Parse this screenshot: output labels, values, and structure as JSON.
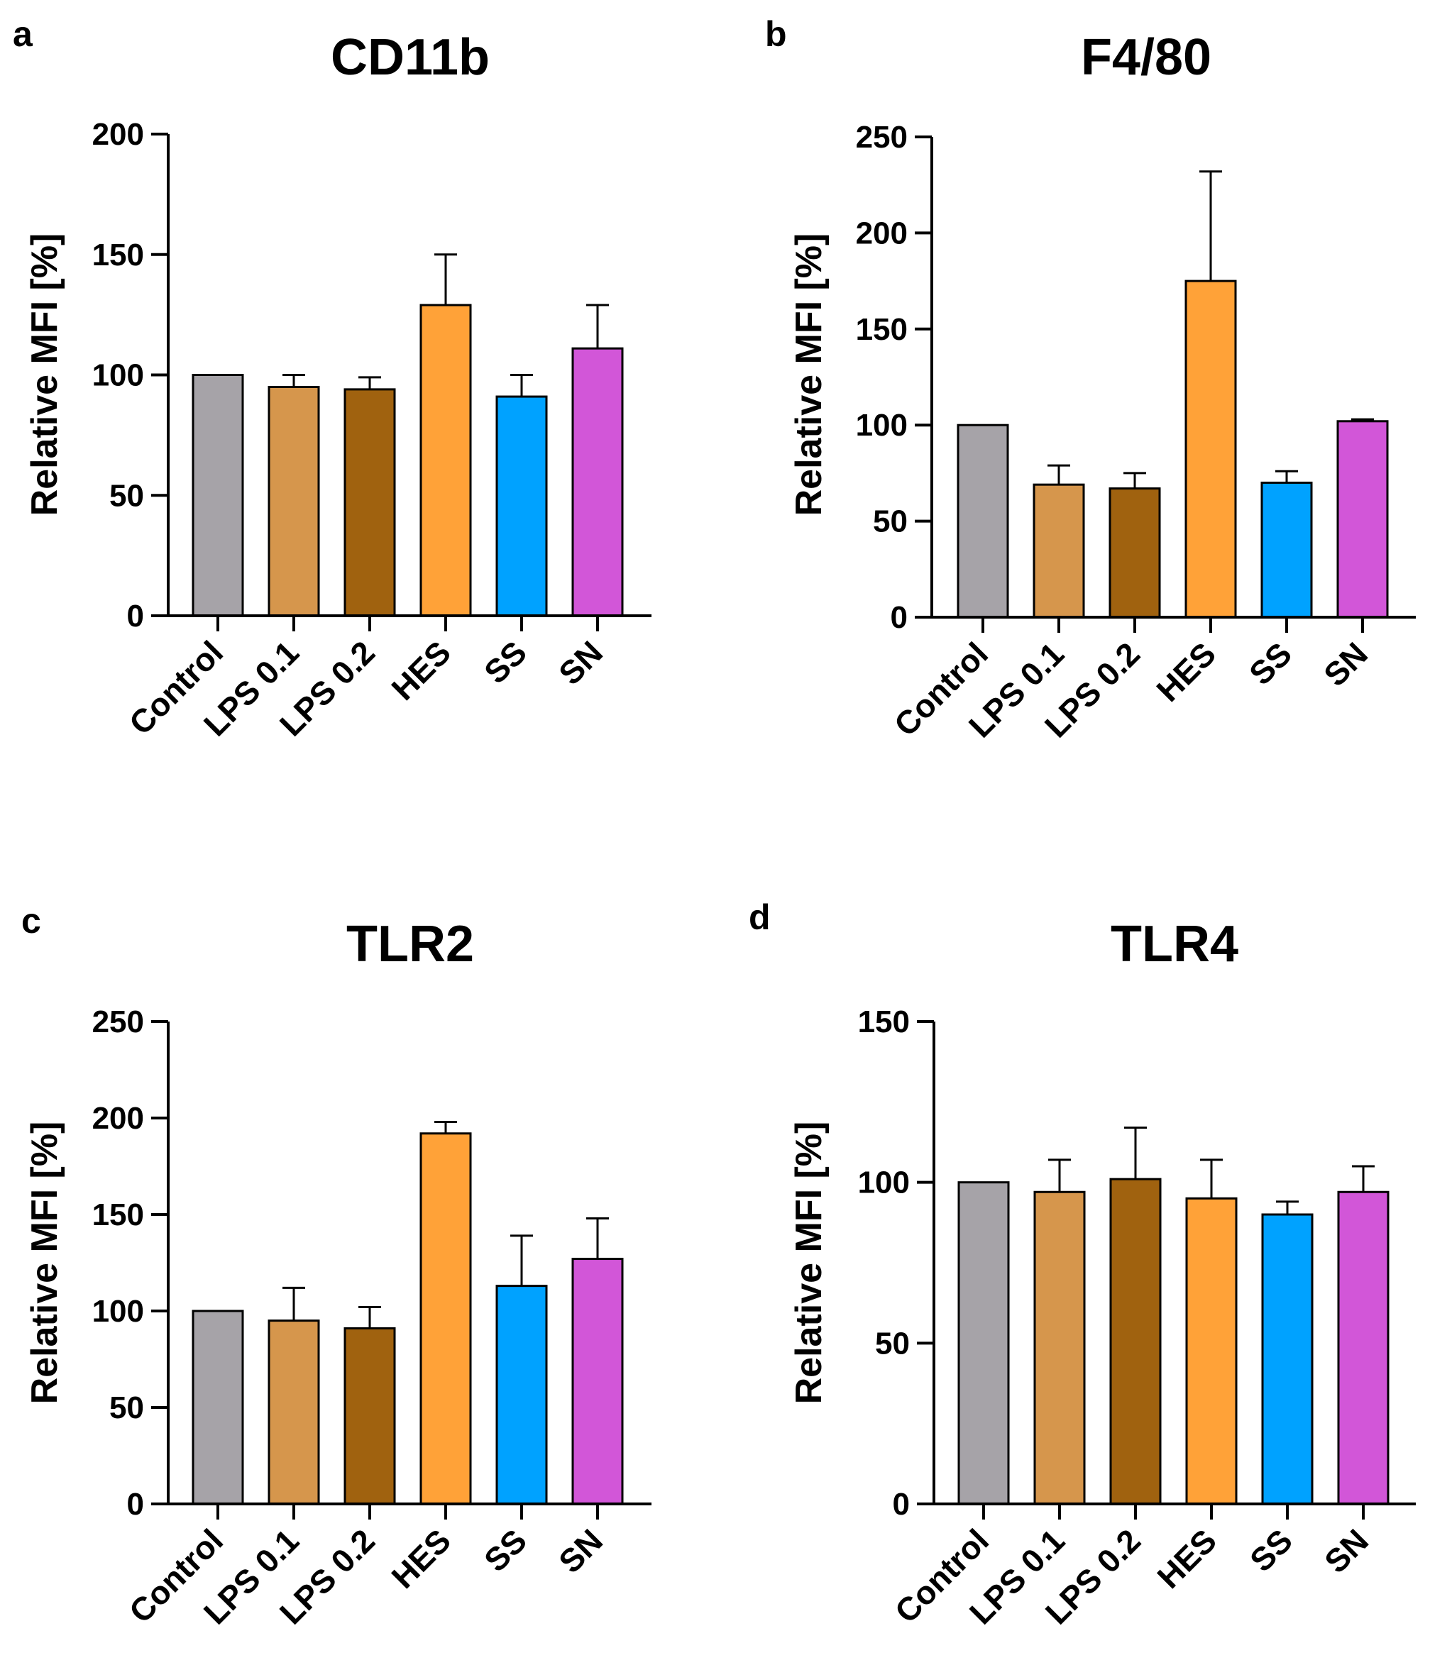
{
  "colors": {
    "Control": "#a6a3a8",
    "LPS 0.1": "#d6964c",
    "LPS 0.2": "#a0620f",
    "HES": "#ffa238",
    "SS": "#00a2ff",
    "SN": "#d256d8"
  },
  "chart_data": [
    {
      "panel": "a",
      "type": "bar",
      "title": "CD11b",
      "ylabel": "Relative MFI [%]",
      "xlabel": "",
      "ylim": [
        0,
        200
      ],
      "yticks": [
        0,
        50,
        100,
        150,
        200
      ],
      "categories": [
        "Control",
        "LPS 0.1",
        "LPS 0.2",
        "HES",
        "SS",
        "SN"
      ],
      "values": [
        100,
        95,
        94,
        129,
        91,
        111
      ],
      "errors": [
        0,
        5,
        5,
        21,
        9,
        18
      ]
    },
    {
      "panel": "b",
      "type": "bar",
      "title": "F4/80",
      "ylabel": "Relative MFI [%]",
      "xlabel": "",
      "ylim": [
        0,
        250
      ],
      "yticks": [
        0,
        50,
        100,
        150,
        200,
        250
      ],
      "categories": [
        "Control",
        "LPS 0.1",
        "LPS 0.2",
        "HES",
        "SS",
        "SN"
      ],
      "values": [
        100,
        69,
        67,
        175,
        70,
        102
      ],
      "errors": [
        0,
        10,
        8,
        57,
        6,
        1
      ]
    },
    {
      "panel": "c",
      "type": "bar",
      "title": "TLR2",
      "ylabel": "Relative MFI [%]",
      "xlabel": "",
      "ylim": [
        0,
        250
      ],
      "yticks": [
        0,
        50,
        100,
        150,
        200,
        250
      ],
      "categories": [
        "Control",
        "LPS 0.1",
        "LPS 0.2",
        "HES",
        "SS",
        "SN"
      ],
      "values": [
        100,
        95,
        91,
        192,
        113,
        127
      ],
      "errors": [
        0,
        17,
        11,
        6,
        26,
        21
      ]
    },
    {
      "panel": "d",
      "type": "bar",
      "title": "TLR4",
      "ylabel": "Relative MFI [%]",
      "xlabel": "",
      "ylim": [
        0,
        150
      ],
      "yticks": [
        0,
        50,
        100,
        150
      ],
      "categories": [
        "Control",
        "LPS 0.1",
        "LPS 0.2",
        "HES",
        "SS",
        "SN"
      ],
      "values": [
        100,
        97,
        101,
        95,
        90,
        97
      ],
      "errors": [
        0,
        10,
        16,
        12,
        4,
        8
      ]
    }
  ]
}
